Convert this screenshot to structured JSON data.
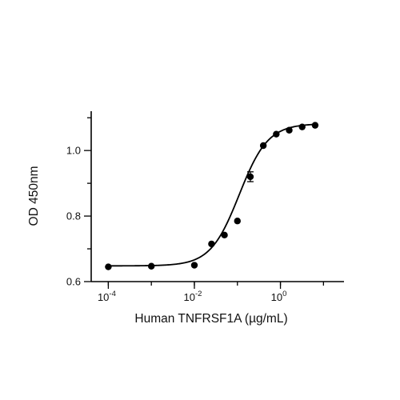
{
  "chart_data": {
    "type": "scatter",
    "xlabel": "Human TNFRSF1A (µg/mL)",
    "ylabel": "OD 450nm",
    "x_scale": "log",
    "xlim": [
      4e-05,
      30
    ],
    "ylim": [
      0.6,
      1.12
    ],
    "x_ticks": [
      {
        "value": 0.0001,
        "base": "10",
        "exp": "-4"
      },
      {
        "value": 0.01,
        "base": "10",
        "exp": "-2"
      },
      {
        "value": 1,
        "base": "10",
        "exp": "0"
      }
    ],
    "y_ticks": [
      {
        "value": 0.6,
        "label": "0.6"
      },
      {
        "value": 0.8,
        "label": "0.8"
      },
      {
        "value": 1.0,
        "label": "1.0"
      }
    ],
    "grid": false,
    "legend": "none",
    "series": [
      {
        "points": [
          {
            "x": 0.0001,
            "y": 0.645
          },
          {
            "x": 0.001,
            "y": 0.647
          },
          {
            "x": 0.01,
            "y": 0.65
          },
          {
            "x": 0.025,
            "y": 0.715
          },
          {
            "x": 0.05,
            "y": 0.742
          },
          {
            "x": 0.1,
            "y": 0.785
          },
          {
            "x": 0.2,
            "y": 0.92,
            "err": 0.015
          },
          {
            "x": 0.4,
            "y": 1.015
          },
          {
            "x": 0.8,
            "y": 1.05
          },
          {
            "x": 1.6,
            "y": 1.062
          },
          {
            "x": 3.2,
            "y": 1.072
          },
          {
            "x": 6.4,
            "y": 1.077
          }
        ],
        "fit": {
          "model": "4PL",
          "bottom": 0.648,
          "top": 1.082,
          "ec50": 0.11,
          "hill": 1.3
        }
      }
    ]
  }
}
